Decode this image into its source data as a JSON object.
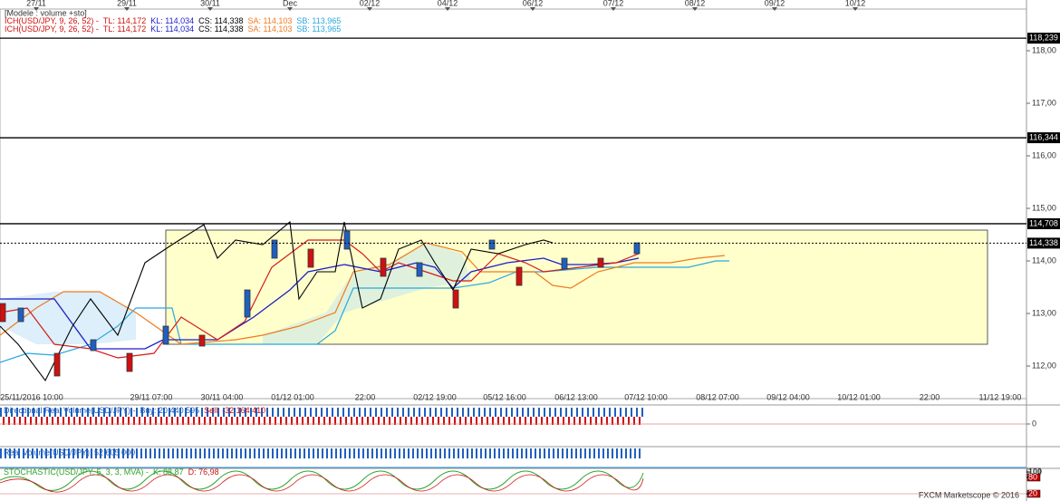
{
  "top_axis": {
    "labels": [
      "27/11",
      "29/11",
      "30/11",
      "Dec",
      "02/12",
      "04/12",
      "06/12",
      "07/12",
      "08/12",
      "09/12",
      "10/12"
    ]
  },
  "legend": {
    "title": "[Modele : volume +sto]",
    "lines": [
      {
        "name": "ICH(USD/JPY, 9, 26, 52) -",
        "tl": "TL: 114,172",
        "kl": "KL: 114,034",
        "cs": "CS: 114,338",
        "sa": "SA: 114,103",
        "sb": "SB: 113,965"
      },
      {
        "name": "ICH(USD/JPY, 9, 26, 52) -",
        "tl": "TL: 114,172",
        "kl": "KL: 114,034",
        "cs": "CS: 114,338",
        "sa": "SA: 114,103",
        "sb": "SB: 113,965"
      }
    ]
  },
  "price_axis": {
    "ticks": [
      {
        "value": 118,
        "label": "118,00"
      },
      {
        "value": 117,
        "label": "117,00"
      },
      {
        "value": 116,
        "label": "116,00"
      },
      {
        "value": 115,
        "label": "115,00"
      },
      {
        "value": 114,
        "label": "114,00"
      },
      {
        "value": 113,
        "label": "113,00"
      },
      {
        "value": 112,
        "label": "112,00"
      }
    ]
  },
  "price_levels": [
    {
      "value": 118.239,
      "label": "118,239"
    },
    {
      "value": 116.344,
      "label": "116,344"
    },
    {
      "value": 114.708,
      "label": "114,708"
    },
    {
      "value": 114.338,
      "label": "114,338",
      "current": true
    }
  ],
  "bottom_axis": {
    "labels": [
      "25/11/2016 10:00",
      "29/11 07:00",
      "30/11 04:00",
      "01/12 01:00",
      "22:00",
      "02/12 19:00",
      "05/12 16:00",
      "06/12 13:00",
      "07/12 10:00",
      "08/12 07:00",
      "09/12 04:00",
      "10/12 01:00",
      "22:00",
      "11/12 19:00"
    ]
  },
  "directional_volume": {
    "name": "Directional Real Volume(USD/JPY) -",
    "buy": "Buy: 20 440 595",
    "sell": "Sell: -32 164 410",
    "ticks": [
      0
    ]
  },
  "real_volume": {
    "name": "Real Volume(USD/JPY): 52 605 000"
  },
  "stochastic": {
    "name": "STOCHASTIC(USD/JPY, 5, 3, 3, MVA) -",
    "k": "K: 88,87",
    "d": "D: 76,98",
    "ticks": [
      100,
      80,
      20
    ]
  },
  "footer": "FXCM Marketscope © 2016"
}
